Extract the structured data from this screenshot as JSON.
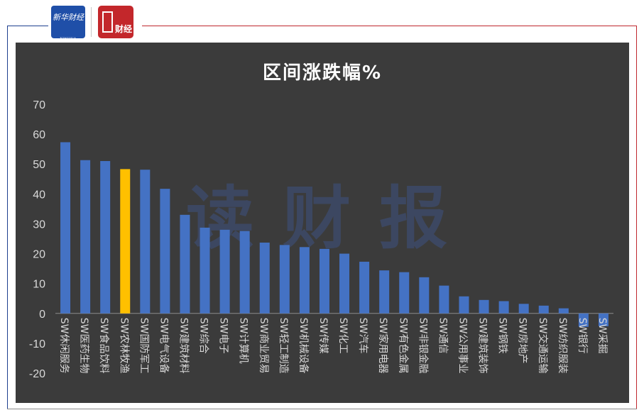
{
  "header": {
    "logo_left_text": "新华财经",
    "logo_left_sub": "XINHUA FINANCE",
    "logo_right_text": "财经"
  },
  "watermark": "读财报",
  "colors": {
    "bar": "#4472c4",
    "highlight": "#ffc000",
    "background": "#3b3b3b",
    "text": "#d9d9d9"
  },
  "chart_data": {
    "type": "bar",
    "title": "区间涨跌幅%",
    "ylim": [
      -20,
      70
    ],
    "yticks": [
      70,
      60,
      50,
      40,
      30,
      20,
      10,
      0,
      -10,
      -20
    ],
    "grid": false,
    "highlight_index": 3,
    "categories": [
      "SW休闲服务",
      "SW医药生物",
      "SW食品饮料",
      "SW农林牧渔",
      "SW国防军工",
      "SW电气设备",
      "SW建筑材料",
      "SW综合",
      "SW电子",
      "SW计算机",
      "SW商业贸易",
      "SW轻工制造",
      "SW机械设备",
      "SW传媒",
      "SW化工",
      "SW汽车",
      "SW家用电器",
      "SW有色金属",
      "SW非银金融",
      "SW通信",
      "SW公用事业",
      "SW建筑装饰",
      "SW钢铁",
      "SW房地产",
      "SW交通运输",
      "SW纺织服装",
      "SW银行",
      "SW采掘"
    ],
    "values": [
      57.3,
      51.3,
      51.0,
      48.3,
      48.1,
      41.7,
      33.0,
      28.7,
      28.0,
      27.6,
      23.7,
      22.9,
      22.2,
      21.6,
      20.0,
      17.3,
      14.4,
      13.8,
      12.1,
      9.3,
      5.7,
      4.5,
      4.1,
      3.2,
      2.6,
      1.7,
      -4.5,
      -4.3
    ]
  }
}
